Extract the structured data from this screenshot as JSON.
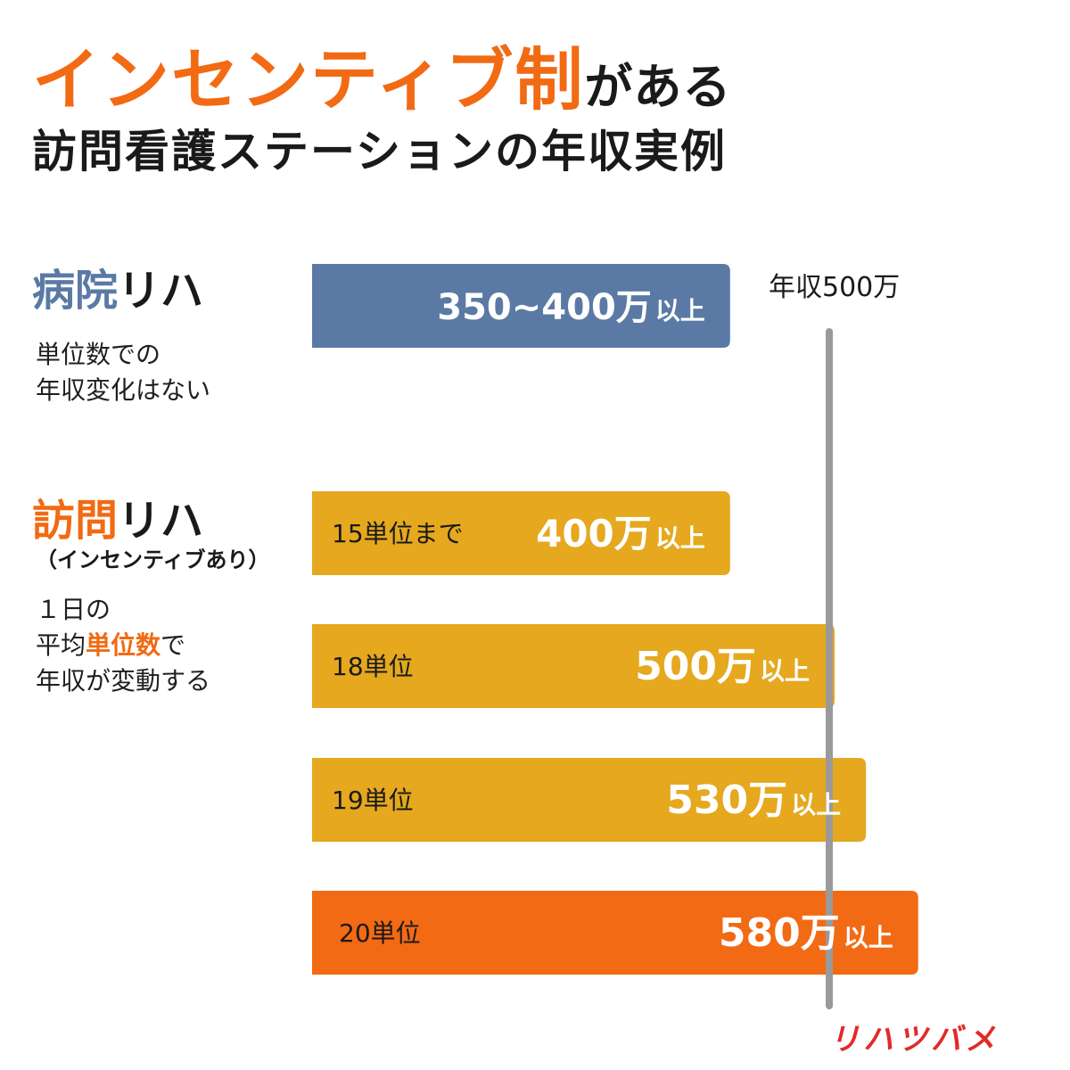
{
  "title": {
    "highlight": "インセンティブ制",
    "suffix": "がある",
    "line2": "訪問看護ステーションの年収実例"
  },
  "groups": {
    "hospital": {
      "title_accent": "病院",
      "title_rest": "リハ",
      "note_line1": "単位数での",
      "note_line2": "年収変化はない"
    },
    "visit": {
      "title_accent": "訪問",
      "title_rest": "リハ",
      "subtitle": "（インセンティブあり）",
      "note_line1": "１日の",
      "note_line2_pre": "平均",
      "note_line2_em": "単位数",
      "note_line2_post": "で",
      "note_line3": "年収が変動する"
    }
  },
  "chart_data": {
    "type": "bar",
    "orientation": "horizontal",
    "unit": "万",
    "reference_line": {
      "value": 500,
      "label": "年収500万"
    },
    "bars": [
      {
        "category": "",
        "value": 400,
        "value_label": "350~400万",
        "unit_label": "以上",
        "color": "#5a7aa5"
      },
      {
        "category": "15単位まで",
        "value": 400,
        "value_label": "400万",
        "unit_label": "以上",
        "color": "#e5a81e"
      },
      {
        "category": "18単位",
        "value": 500,
        "value_label": "500万",
        "unit_label": "以上",
        "color": "#e5a81e"
      },
      {
        "category": "19単位",
        "value": 530,
        "value_label": "530万",
        "unit_label": "以上",
        "color": "#e5a81e"
      },
      {
        "category": "20単位",
        "value": 580,
        "value_label": "580万",
        "unit_label": "以上",
        "color": "#f26a13"
      }
    ]
  },
  "brand": {
    "logo": "リハツバメ"
  }
}
